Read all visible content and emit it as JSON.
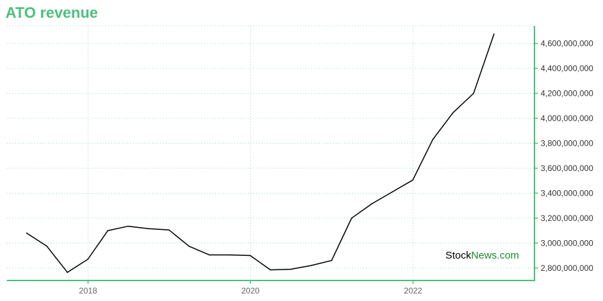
{
  "title": "ATO revenue",
  "watermark": {
    "part1": "Stock",
    "part2": "News.com"
  },
  "colors": {
    "accent": "#4cc07c",
    "grid": "#9fd8b8",
    "line": "#000000"
  },
  "chart_data": {
    "type": "line",
    "title": "ATO revenue",
    "xlabel": "",
    "ylabel": "",
    "y_axis_side": "right",
    "grid": true,
    "xlim": [
      "2017-01-01",
      "2023-07-01"
    ],
    "ylim": [
      2700000000,
      4740000000
    ],
    "x_ticks": [
      {
        "label": "2018",
        "date": "2018-01-01"
      },
      {
        "label": "2020",
        "date": "2020-01-01"
      },
      {
        "label": "2022",
        "date": "2022-01-01"
      }
    ],
    "y_ticks": [
      2800000000,
      3000000000,
      3200000000,
      3400000000,
      3600000000,
      3800000000,
      4000000000,
      4200000000,
      4400000000,
      4600000000
    ],
    "y_tick_labels": [
      "2,800,000,000",
      "3,000,000,000",
      "3,200,000,000",
      "3,400,000,000",
      "3,600,000,000",
      "3,800,000,000",
      "4,000,000,000",
      "4,200,000,000",
      "4,400,000,000",
      "4,600,000,000"
    ],
    "series": [
      {
        "points": [
          {
            "x": "2017-03-31",
            "y": 3080000000
          },
          {
            "x": "2017-06-30",
            "y": 2975000000
          },
          {
            "x": "2017-09-30",
            "y": 2765000000
          },
          {
            "x": "2017-12-31",
            "y": 2870000000
          },
          {
            "x": "2018-03-31",
            "y": 3100000000
          },
          {
            "x": "2018-06-30",
            "y": 3135000000
          },
          {
            "x": "2018-09-30",
            "y": 3115000000
          },
          {
            "x": "2018-12-31",
            "y": 3105000000
          },
          {
            "x": "2019-03-31",
            "y": 2975000000
          },
          {
            "x": "2019-06-30",
            "y": 2905000000
          },
          {
            "x": "2019-09-30",
            "y": 2905000000
          },
          {
            "x": "2019-12-31",
            "y": 2900000000
          },
          {
            "x": "2020-03-31",
            "y": 2785000000
          },
          {
            "x": "2020-06-30",
            "y": 2790000000
          },
          {
            "x": "2020-09-30",
            "y": 2820000000
          },
          {
            "x": "2020-12-31",
            "y": 2860000000
          },
          {
            "x": "2021-03-31",
            "y": 3200000000
          },
          {
            "x": "2021-06-30",
            "y": 3315000000
          },
          {
            "x": "2021-09-30",
            "y": 3410000000
          },
          {
            "x": "2021-12-31",
            "y": 3505000000
          },
          {
            "x": "2022-03-31",
            "y": 3830000000
          },
          {
            "x": "2022-06-30",
            "y": 4045000000
          },
          {
            "x": "2022-09-30",
            "y": 4200000000
          },
          {
            "x": "2022-12-31",
            "y": 4675000000
          }
        ]
      }
    ]
  }
}
